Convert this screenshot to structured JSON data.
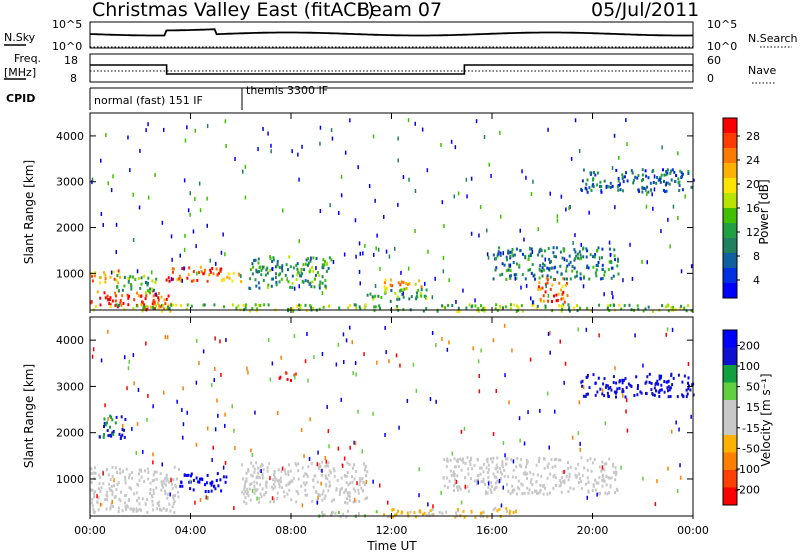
{
  "header": {
    "title": "Christmas Valley East (fitACF)",
    "beam": "Beam 07",
    "date": "05/Jul/2011"
  },
  "panels": {
    "nsky": {
      "left_label": "N.Sky",
      "right_label": "N.Search",
      "left_ticks": [
        "10^5",
        "10^0"
      ],
      "right_ticks": [
        "10^5",
        "10^0"
      ]
    },
    "freq": {
      "left_label_1": "Freq.",
      "left_label_2": "[MHz]",
      "right_label": "Nave",
      "left_ticks": [
        "18",
        "8"
      ],
      "right_ticks": [
        "60",
        "0"
      ]
    },
    "cpid": {
      "label": "CPID",
      "segments": [
        {
          "label": "normal (fast) 151 IF",
          "start_hour": 0,
          "end_hour": 6.05
        },
        {
          "label": "themis 3300 IF",
          "start_hour": 6.05,
          "end_hour": 24
        }
      ]
    }
  },
  "power_panel": {
    "ylabel": "Slant Range [km]",
    "yticks": [
      "4000",
      "3000",
      "2000",
      "1000"
    ],
    "colorbar_label": "Power [dB]",
    "colorbar_ticks": [
      "28",
      "24",
      "20",
      "16",
      "12",
      "8",
      "4"
    ],
    "colors": [
      "#ff0000",
      "#ff3b00",
      "#ff7a00",
      "#ffb000",
      "#ffe400",
      "#b8e400",
      "#40c000",
      "#20a040",
      "#208060",
      "#1060a0",
      "#0030e0",
      "#0000ff"
    ]
  },
  "velocity_panel": {
    "ylabel": "Slant Range [km]",
    "yticks": [
      "4000",
      "3000",
      "2000",
      "1000"
    ],
    "colorbar_label": "Velocity [m s⁻¹]",
    "colorbar_ticks": [
      "200",
      "100",
      "50",
      "15",
      "-15",
      "-50",
      "-100",
      "-200"
    ],
    "colors": [
      "#0000ff",
      "#1010d0",
      "#10a040",
      "#60d040",
      "#c8c8c8",
      "#c8c8c8",
      "#ffb000",
      "#ff8000",
      "#ff4000",
      "#ff0000"
    ]
  },
  "x_axis": {
    "label": "Time UT",
    "ticks": [
      "00:00",
      "04:00",
      "08:00",
      "12:00",
      "16:00",
      "20:00",
      "00:00"
    ]
  },
  "chart_data": {
    "type": "heatmap",
    "title": "Christmas Valley East (fitACF)",
    "xlabel": "Time UT",
    "ylabel": "Slant Range [km]",
    "xlim": [
      0,
      24
    ],
    "ylim": [
      200,
      4500
    ],
    "power_colorbar": {
      "label": "Power [dB]",
      "range": [
        0,
        30
      ]
    },
    "velocity_colorbar": {
      "label": "Velocity [m s⁻¹]",
      "range": [
        -200,
        200
      ]
    },
    "power_features": [
      {
        "t0": 0.0,
        "t1": 3.1,
        "r0": 300,
        "r1": 650,
        "level": 28
      },
      {
        "t0": 1.6,
        "t1": 3.2,
        "r0": 200,
        "r1": 400,
        "level": 24
      },
      {
        "t0": 3.0,
        "t1": 5.2,
        "r0": 850,
        "r1": 1200,
        "level": 26
      },
      {
        "t0": 5.2,
        "t1": 6.2,
        "r0": 850,
        "r1": 1050,
        "level": 24
      },
      {
        "t0": 0.0,
        "t1": 1.2,
        "r0": 800,
        "r1": 1100,
        "level": 22
      },
      {
        "t0": 1.0,
        "t1": 2.6,
        "r0": 600,
        "r1": 1000,
        "level": 12
      },
      {
        "t0": 6.3,
        "t1": 9.6,
        "r0": 700,
        "r1": 1400,
        "level": 10
      },
      {
        "t0": 11.6,
        "t1": 13.2,
        "r0": 700,
        "r1": 900,
        "level": 22
      },
      {
        "t0": 11.0,
        "t1": 13.5,
        "r0": 400,
        "r1": 700,
        "level": 12
      },
      {
        "t0": 17.8,
        "t1": 19.0,
        "r0": 400,
        "r1": 950,
        "level": 26
      },
      {
        "t0": 16.0,
        "t1": 21.0,
        "r0": 900,
        "r1": 1600,
        "level": 8
      },
      {
        "t0": 19.5,
        "t1": 24.0,
        "r0": 2800,
        "r1": 3300,
        "level": 6
      },
      {
        "t0": 0.0,
        "t1": 24.0,
        "r0": 200,
        "r1": 350,
        "level": 14
      }
    ],
    "velocity_features": [
      {
        "t0": 3.5,
        "t1": 5.4,
        "r0": 750,
        "r1": 1150,
        "value": 220
      },
      {
        "t0": 0.3,
        "t1": 1.4,
        "r0": 1900,
        "r1": 2400,
        "value": 150
      },
      {
        "t0": 19.5,
        "t1": 24.0,
        "r0": 2800,
        "r1": 3300,
        "value": 180
      },
      {
        "t0": 0.0,
        "t1": 3.5,
        "r0": 300,
        "r1": 1300,
        "value": 0
      },
      {
        "t0": 6.0,
        "t1": 11.0,
        "r0": 500,
        "r1": 1400,
        "value": 0
      },
      {
        "t0": 14.0,
        "t1": 21.0,
        "r0": 700,
        "r1": 1500,
        "value": 0
      },
      {
        "t0": 11.5,
        "t1": 17.0,
        "r0": 200,
        "r1": 400,
        "value": -60
      },
      {
        "t0": 9.0,
        "t1": 11.5,
        "r0": 200,
        "r1": 350,
        "value": 40
      },
      {
        "t0": 7.5,
        "t1": 8.2,
        "r0": 3150,
        "r1": 3350,
        "value": -200
      }
    ]
  }
}
